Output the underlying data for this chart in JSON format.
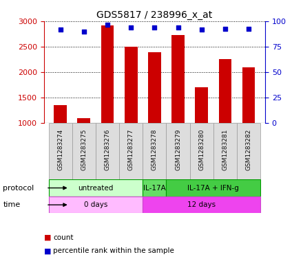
{
  "title": "GDS5817 / 238996_x_at",
  "samples": [
    "GSM1283274",
    "GSM1283275",
    "GSM1283276",
    "GSM1283277",
    "GSM1283278",
    "GSM1283279",
    "GSM1283280",
    "GSM1283281",
    "GSM1283282"
  ],
  "counts": [
    1350,
    1100,
    2920,
    2500,
    2400,
    2740,
    1700,
    2260,
    2100
  ],
  "percentiles": [
    92,
    90,
    97,
    94,
    94,
    94,
    92,
    93,
    93
  ],
  "ylim_left": [
    1000,
    3000
  ],
  "ylim_right": [
    0,
    100
  ],
  "yticks_left": [
    1000,
    1500,
    2000,
    2500,
    3000
  ],
  "yticks_right": [
    0,
    25,
    50,
    75,
    100
  ],
  "bar_color": "#cc0000",
  "dot_color": "#0000cc",
  "bar_bottom": 1000,
  "protocol_groups": [
    {
      "label": "untreated",
      "start": 0,
      "end": 3,
      "color": "#ccffcc",
      "border_color": "#009900"
    },
    {
      "label": "IL-17A",
      "start": 4,
      "end": 4,
      "color": "#66dd66",
      "border_color": "#009900"
    },
    {
      "label": "IL-17A + IFN-g",
      "start": 5,
      "end": 8,
      "color": "#44cc44",
      "border_color": "#009900"
    }
  ],
  "time_groups": [
    {
      "label": "0 days",
      "start": 0,
      "end": 3,
      "color": "#ffbbff",
      "border_color": "#cc44cc"
    },
    {
      "label": "12 days",
      "start": 4,
      "end": 8,
      "color": "#ee44ee",
      "border_color": "#cc44cc"
    }
  ],
  "legend_items": [
    {
      "label": "count",
      "color": "#cc0000"
    },
    {
      "label": "percentile rank within the sample",
      "color": "#0000cc"
    }
  ],
  "sample_box_color": "#dddddd",
  "sample_box_edge": "#999999",
  "grid_color": "#000000"
}
